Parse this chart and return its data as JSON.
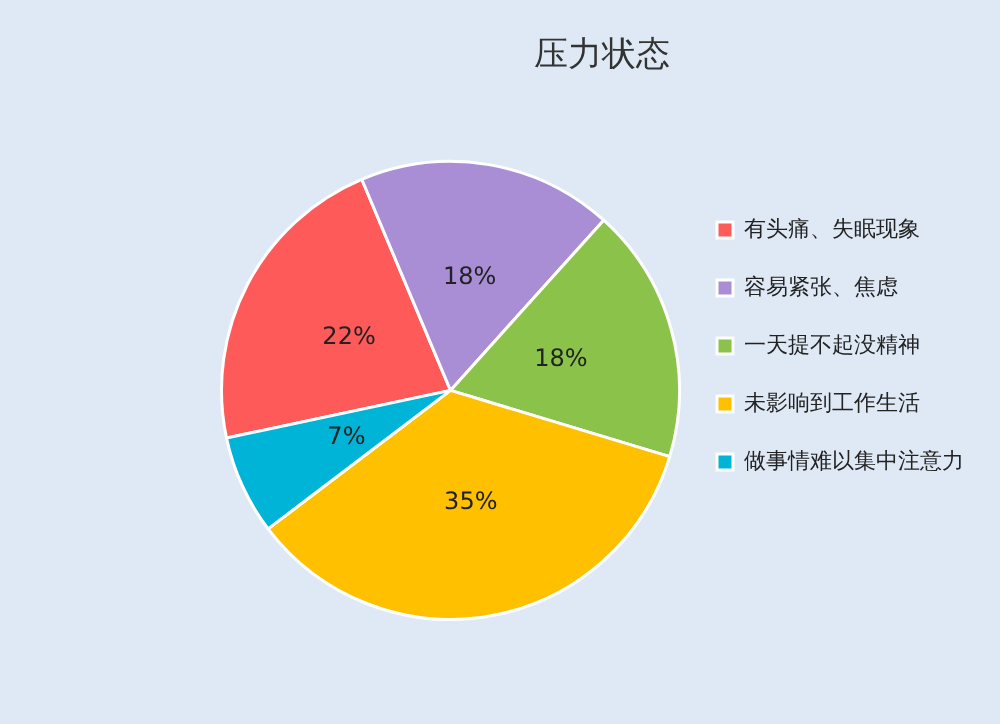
{
  "chart_data": {
    "type": "pie",
    "title": "压力状态",
    "categories": [
      "有头痛、失眠现象",
      "容易紧张、焦虑",
      "一天提不起没精神",
      "未影响到工作生活",
      "做事情难以集中注意力"
    ],
    "values": [
      22,
      18,
      18,
      35,
      7
    ],
    "colors": [
      "#ff5a5a",
      "#a98ed6",
      "#8bc34a",
      "#ffc000",
      "#00b4d8"
    ],
    "value_labels": [
      "22%",
      "18%",
      "18%",
      "35%",
      "7%"
    ],
    "legend": "right"
  }
}
